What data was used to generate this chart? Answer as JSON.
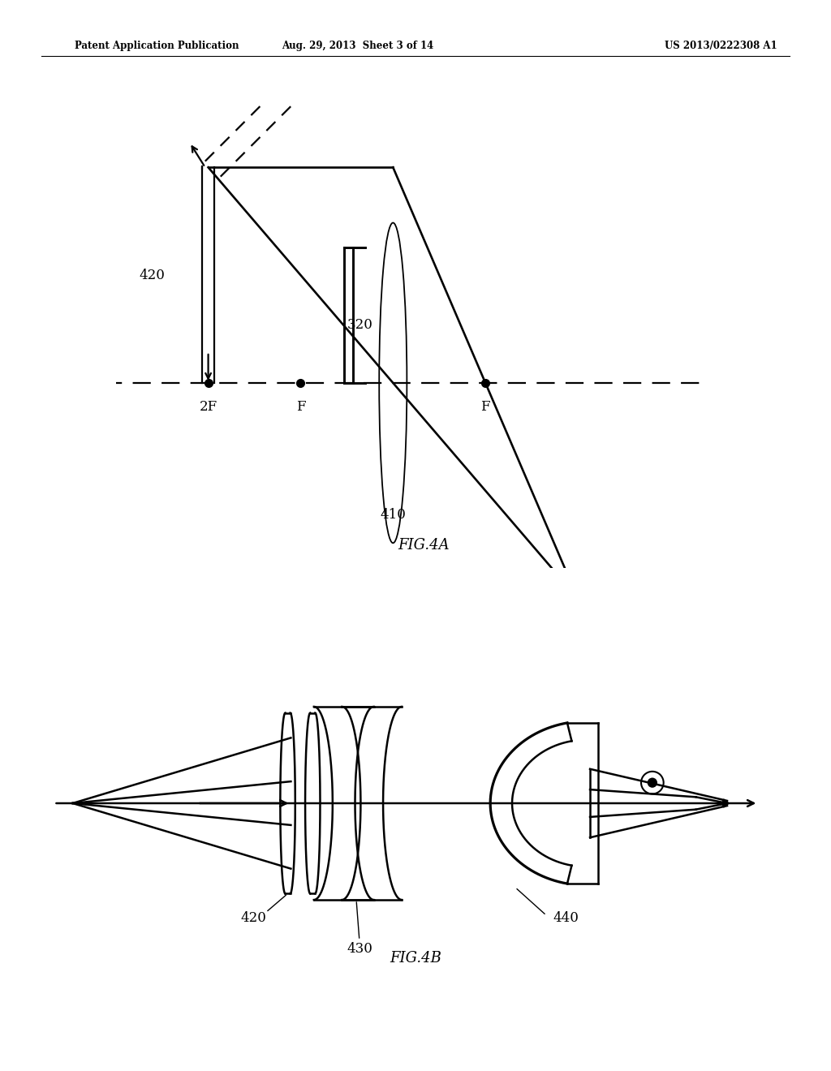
{
  "title_left": "Patent Application Publication",
  "title_center": "Aug. 29, 2013  Sheet 3 of 14",
  "title_right": "US 2013/0222308 A1",
  "fig4a_label": "FIG.4A",
  "fig4b_label": "FIG.4B",
  "bg_color": "#ffffff",
  "line_color": "#000000"
}
